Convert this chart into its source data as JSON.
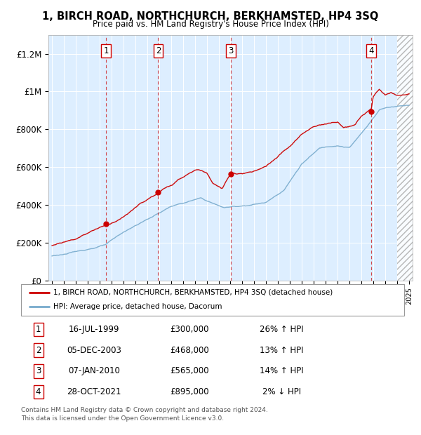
{
  "title": "1, BIRCH ROAD, NORTHCHURCH, BERKHAMSTED, HP4 3SQ",
  "subtitle": "Price paid vs. HM Land Registry's House Price Index (HPI)",
  "ylabel_ticks": [
    "£0",
    "£200K",
    "£400K",
    "£600K",
    "£800K",
    "£1M",
    "£1.2M"
  ],
  "ytick_values": [
    0,
    200000,
    400000,
    600000,
    800000,
    1000000,
    1200000
  ],
  "ylim": [
    0,
    1300000
  ],
  "xlim_start": 1994.7,
  "xlim_end": 2025.3,
  "transactions": [
    {
      "num": 1,
      "date": "16-JUL-1999",
      "year": 1999.54,
      "price": 300000,
      "pct": "26%",
      "dir": "↑"
    },
    {
      "num": 2,
      "date": "05-DEC-2003",
      "year": 2003.92,
      "price": 468000,
      "pct": "13%",
      "dir": "↑"
    },
    {
      "num": 3,
      "date": "07-JAN-2010",
      "year": 2010.03,
      "price": 565000,
      "pct": "14%",
      "dir": "↑"
    },
    {
      "num": 4,
      "date": "28-OCT-2021",
      "year": 2021.83,
      "price": 895000,
      "pct": "2%",
      "dir": "↓"
    }
  ],
  "legend_property": "1, BIRCH ROAD, NORTHCHURCH, BERKHAMSTED, HP4 3SQ (detached house)",
  "legend_hpi": "HPI: Average price, detached house, Dacorum",
  "footer1": "Contains HM Land Registry data © Crown copyright and database right 2024.",
  "footer2": "This data is licensed under the Open Government Licence v3.0.",
  "red_color": "#cc0000",
  "blue_color": "#77aacc",
  "bg_color": "#ddeeff",
  "hatch_start": 2024.0,
  "table_rows": [
    {
      "num": "1",
      "date": "16-JUL-1999",
      "price": "£300,000",
      "pct": "26% ↑ HPI"
    },
    {
      "num": "2",
      "date": "05-DEC-2003",
      "price": "£468,000",
      "pct": "13% ↑ HPI"
    },
    {
      "num": "3",
      "date": "07-JAN-2010",
      "price": "£565,000",
      "pct": "14% ↑ HPI"
    },
    {
      "num": "4",
      "date": "28-OCT-2021",
      "price": "£895,000",
      "pct": "2% ↓ HPI"
    }
  ]
}
